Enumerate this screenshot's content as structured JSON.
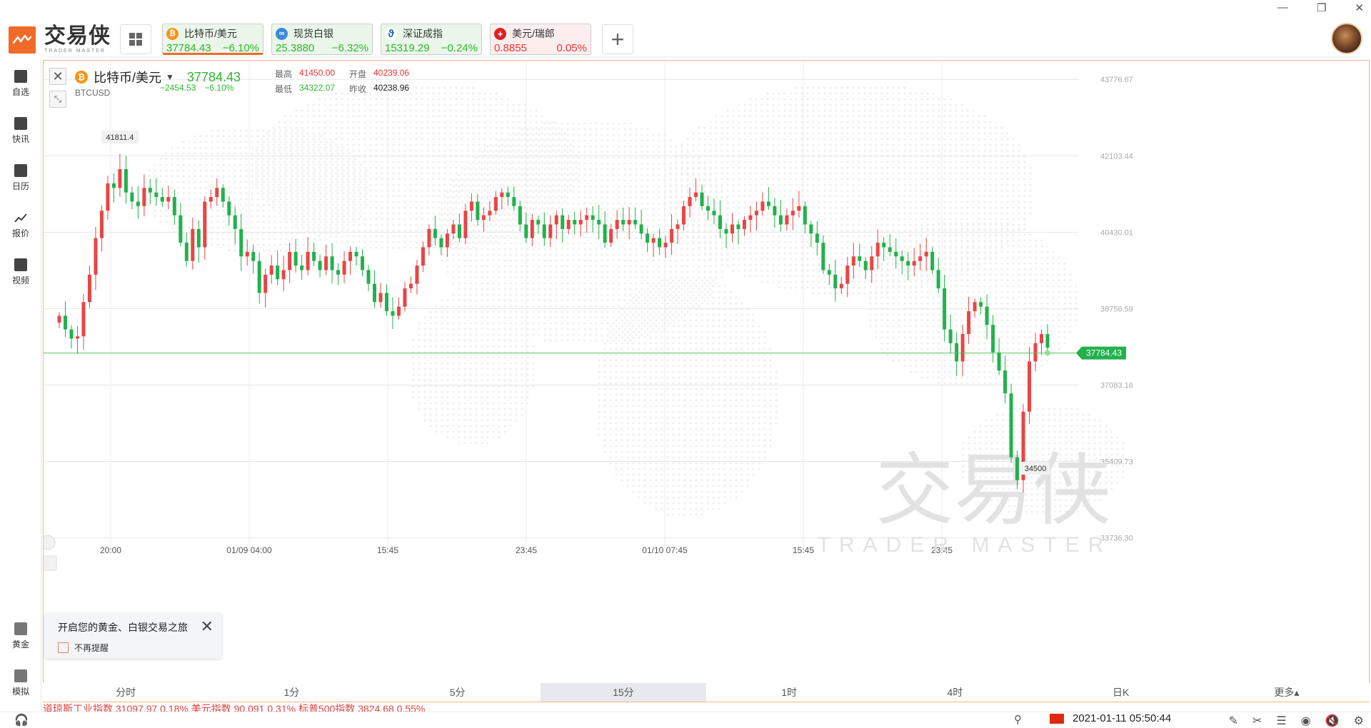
{
  "app": {
    "brand_cn": "交易侠",
    "brand_en": "TRADER MASTER"
  },
  "tabs": [
    {
      "name": "比特币/美元",
      "price": "37784.43",
      "change": "−6.10%",
      "icon": "bitcoin-icon",
      "icon_color": "#f7931a",
      "tone": "green",
      "active": true
    },
    {
      "name": "现货白银",
      "price": "25.3880",
      "change": "−6.32%",
      "icon": "silver-icon",
      "icon_color": "#3a8be0",
      "tone": "green",
      "active": false
    },
    {
      "name": "深证成指",
      "price": "15319.29",
      "change": "−0.24%",
      "icon": "shenzhen-index-icon",
      "icon_color": "#1a64c8",
      "tone": "green",
      "active": false
    },
    {
      "name": "美元/瑞郎",
      "price": "0.8855",
      "change": "0.05%",
      "icon": "usd-chf-flag-icon",
      "icon_color": "#d22",
      "tone": "red",
      "active": false
    }
  ],
  "sidebar": {
    "items": [
      {
        "label": "自选",
        "icon": "watchlist-icon"
      },
      {
        "label": "快讯",
        "icon": "news-icon"
      },
      {
        "label": "日历",
        "icon": "calendar-icon"
      },
      {
        "label": "报价",
        "icon": "quotes-icon"
      },
      {
        "label": "视频",
        "icon": "video-icon"
      },
      {
        "label": "黄金",
        "icon": "gold-icon"
      },
      {
        "label": "模拟",
        "icon": "simulation-icon"
      }
    ]
  },
  "symbol": {
    "name": "比特币/美元",
    "code": "BTCUSD",
    "price": "37784.43",
    "change_abs": "−2454.53",
    "change_pct": "−6.10%",
    "high_label": "最高",
    "high": "41450.00",
    "open_label": "开盘",
    "open": "40239.06",
    "low_label": "最低",
    "low": "34322.07",
    "prev_label": "昨收",
    "prev": "40238.96"
  },
  "chart_data": {
    "type": "candlestick",
    "y_ticks": [
      "43776.67",
      "42103.44",
      "40430.01",
      "38756.59",
      "37083.16",
      "35409.73",
      "33736.30"
    ],
    "x_ticks": [
      "20:00",
      "01/09 04:00",
      "15:45",
      "23:45",
      "01/10 07:45",
      "15:45",
      "23:45"
    ],
    "current_price_label": "37784.43",
    "high_marker": "41811.4",
    "low_marker": "34500",
    "up_color": "#e84545",
    "down_color": "#22b14c",
    "closes": [
      38600,
      38300,
      38100,
      38150,
      38900,
      39500,
      40300,
      40900,
      41500,
      41400,
      41811,
      41300,
      41100,
      41000,
      41400,
      41300,
      41200,
      41100,
      41200,
      40800,
      40200,
      39800,
      40500,
      40100,
      41100,
      41200,
      41400,
      41100,
      40800,
      40500,
      39900,
      40000,
      39800,
      39100,
      39500,
      39700,
      39400,
      39600,
      40000,
      39700,
      39600,
      40000,
      39800,
      39600,
      39900,
      39600,
      39500,
      39800,
      40000,
      39900,
      39600,
      39300,
      38900,
      39100,
      38700,
      38600,
      38800,
      39200,
      39300,
      39700,
      40100,
      40500,
      40300,
      40100,
      40400,
      40600,
      40300,
      40900,
      41100,
      40700,
      40800,
      40900,
      41200,
      41300,
      41200,
      41000,
      40600,
      40300,
      40700,
      40600,
      40300,
      40600,
      40800,
      40500,
      40700,
      40600,
      40700,
      40800,
      40700,
      40600,
      40200,
      40500,
      40700,
      40600,
      40700,
      40600,
      40400,
      40200,
      40300,
      40100,
      40200,
      40500,
      40600,
      41000,
      41200,
      41300,
      41000,
      40900,
      40800,
      40500,
      40400,
      40600,
      40500,
      40700,
      40800,
      40900,
      41100,
      41000,
      40800,
      40600,
      40800,
      40900,
      41000,
      40600,
      40400,
      40200,
      39600,
      39500,
      39200,
      39300,
      39700,
      39900,
      39800,
      39600,
      39900,
      40200,
      40100,
      40000,
      39900,
      39800,
      39700,
      39800,
      39900,
      40000,
      39600,
      39200,
      38300,
      38000,
      37600,
      38200,
      38700,
      38900,
      38800,
      38400,
      37800,
      37400,
      36900,
      35500,
      35000,
      36500,
      37600,
      38000,
      38200,
      37900
    ],
    "dates_note": ""
  },
  "timeframes": [
    "分时",
    "1分",
    "5分",
    "15分",
    "1时",
    "4时",
    "日K",
    "更多▴"
  ],
  "active_timeframe": "15分",
  "notice": {
    "text": "开启您的黄金、白银交易之旅",
    "checkbox_label": "不再提醒"
  },
  "ticker_text": "道琼斯工业指数  31097.97   0.18%          美元指数  90.091   0.31%          标普500指数  3824.68   0.55%",
  "status": {
    "datetime": "2021-01-11 05:50:44"
  },
  "watermark": {
    "cn": "交易侠",
    "en": "TRADER MASTER"
  }
}
